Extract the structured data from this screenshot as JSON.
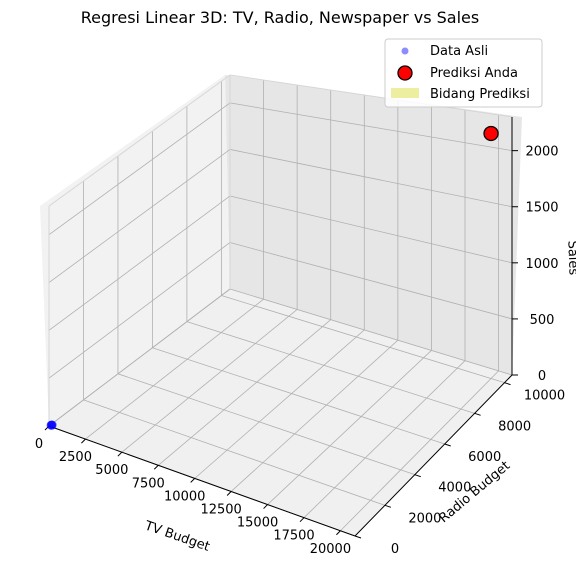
{
  "chart_data": {
    "type": "scatter3d",
    "title": "Regresi Linear 3D: TV, Radio, Newspaper vs Sales",
    "xlabel": "TV Budget",
    "ylabel": "Radio Budget",
    "zlabel": "Sales",
    "xlim": [
      0,
      21000
    ],
    "ylim": [
      0,
      10500
    ],
    "zlim": [
      0,
      2300
    ],
    "x_ticks": [
      "0",
      "2500",
      "5000",
      "7500",
      "10000",
      "12500",
      "15000",
      "17500",
      "20000"
    ],
    "y_ticks": [
      "0",
      "2000",
      "4000",
      "6000",
      "8000",
      "10000"
    ],
    "z_ticks": [
      "0",
      "500",
      "1000",
      "1500",
      "2000"
    ],
    "grid": true,
    "legend_position": "top-right",
    "series": [
      {
        "name": "Data Asli",
        "color": "#0000ff",
        "marker": "circle",
        "points": [
          {
            "x": 150,
            "y": 25,
            "z": 14
          },
          {
            "x": 180,
            "y": 30,
            "z": 16
          },
          {
            "x": 120,
            "y": 20,
            "z": 12
          }
        ]
      },
      {
        "name": "Prediksi Anda",
        "color": "#ff0000",
        "marker": "circle-large",
        "points": [
          {
            "x": 20000,
            "y": 10000,
            "z": 2200
          }
        ]
      },
      {
        "name": "Bidang Prediksi",
        "color": "#eeeea0",
        "marker": "surface"
      }
    ]
  }
}
